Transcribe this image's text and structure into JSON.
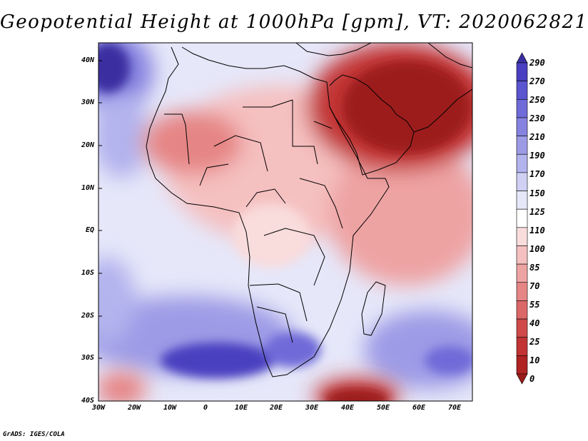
{
  "title": "Geopotential Height at 1000hPa [gpm], VT: 2020062821",
  "footer": "GrADS: IGES/COLA",
  "latitude_labels": [
    "40N",
    "30N",
    "20N",
    "10N",
    "EQ",
    "10S",
    "20S",
    "30S",
    "40S"
  ],
  "longitude_labels": [
    "30W",
    "20W",
    "10W",
    "0",
    "10E",
    "20E",
    "30E",
    "40E",
    "50E",
    "60E",
    "70E"
  ],
  "colorbar": {
    "levels": [
      "290",
      "270",
      "250",
      "230",
      "210",
      "190",
      "170",
      "150",
      "125",
      "110",
      "100",
      "85",
      "70",
      "55",
      "40",
      "25",
      "10",
      "0"
    ],
    "colors": [
      "#3a2fa0",
      "#4a3fc0",
      "#5b55d0",
      "#6f6bd8",
      "#8582e0",
      "#9d9be6",
      "#b3b3ee",
      "#cfd0f4",
      "#e6e7f9",
      "#ffffff",
      "#f9dcdc",
      "#f5c0c0",
      "#eea3a3",
      "#e68585",
      "#dc6767",
      "#d14a4a",
      "#c23434",
      "#b02323",
      "#9c1a1a"
    ]
  },
  "map": {
    "lon_range": [
      -30,
      75
    ],
    "lat_range": [
      -40,
      45
    ],
    "ocean_color": "#e6e7f9",
    "land_color": "#f5c0c0"
  }
}
